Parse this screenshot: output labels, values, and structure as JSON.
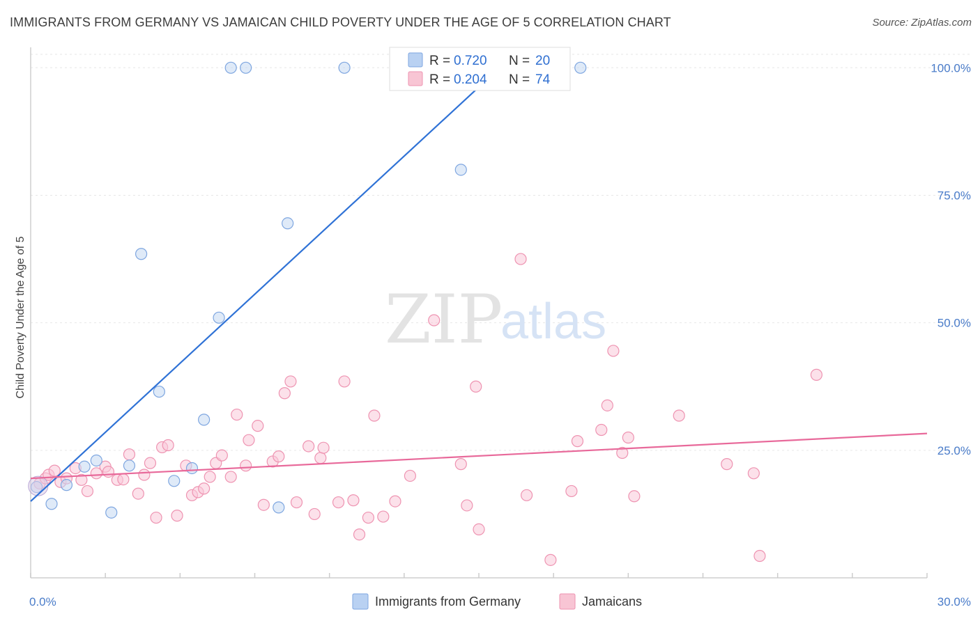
{
  "header": {
    "title": "IMMIGRANTS FROM GERMANY VS JAMAICAN CHILD POVERTY UNDER THE AGE OF 5 CORRELATION CHART",
    "source": "Source: ZipAtlas.com"
  },
  "watermark": {
    "zip": "ZIP",
    "atlas": "atlas"
  },
  "legend": {
    "rows": [
      {
        "r_label": "R =",
        "r_value": "0.720",
        "n_label": "N =",
        "n_value": "20",
        "color": "#b9d1f2",
        "stroke": "#7ea6e0"
      },
      {
        "r_label": "R =",
        "r_value": "0.204",
        "n_label": "N =",
        "n_value": "74",
        "color": "#f8c5d4",
        "stroke": "#ee93b1"
      }
    ]
  },
  "bottom_legend": {
    "items": [
      {
        "label": "Immigrants from Germany",
        "color": "#b9d1f2",
        "stroke": "#7ea6e0"
      },
      {
        "label": "Jamaicans",
        "color": "#f8c5d4",
        "stroke": "#ee93b1"
      }
    ]
  },
  "chart_data": {
    "type": "scatter",
    "title": "IMMIGRANTS FROM GERMANY VS JAMAICAN CHILD POVERTY UNDER THE AGE OF 5 CORRELATION CHART",
    "xlabel": "",
    "ylabel": "Child Poverty Under the Age of 5",
    "xlim": [
      0,
      30
    ],
    "ylim": [
      0,
      104
    ],
    "x_tick_labels": [
      "0.0%",
      "30.0%"
    ],
    "y_ticks": [
      25,
      50,
      75,
      100
    ],
    "y_tick_labels": [
      "25.0%",
      "50.0%",
      "75.0%",
      "100.0%"
    ],
    "grid": true,
    "legend_position": "top-center",
    "series": [
      {
        "name": "Immigrants from Germany",
        "color": "#7ea6e0",
        "fill": "#c5d9f3",
        "line_color": "#2f72d6",
        "trend": {
          "x": [
            0.0,
            15.7
          ],
          "y": [
            15.0,
            100.0
          ]
        },
        "points": [
          [
            0.2,
            17.8
          ],
          [
            0.7,
            14.5
          ],
          [
            1.2,
            18.2
          ],
          [
            1.8,
            21.8
          ],
          [
            2.2,
            23.0
          ],
          [
            2.7,
            12.8
          ],
          [
            3.3,
            22.0
          ],
          [
            3.7,
            63.5
          ],
          [
            4.3,
            36.5
          ],
          [
            4.8,
            19.0
          ],
          [
            5.4,
            21.5
          ],
          [
            5.8,
            31.0
          ],
          [
            6.3,
            51.0
          ],
          [
            6.7,
            100.0
          ],
          [
            7.2,
            100.0
          ],
          [
            8.3,
            13.8
          ],
          [
            8.6,
            69.5
          ],
          [
            10.5,
            100.0
          ],
          [
            14.4,
            80.0
          ],
          [
            18.4,
            100.0
          ]
        ]
      },
      {
        "name": "Jamaicans",
        "color": "#ee93b1",
        "fill": "#f9c9d8",
        "line_color": "#e8699a",
        "trend": {
          "x": [
            0.0,
            30.0
          ],
          "y": [
            19.5,
            28.3
          ]
        },
        "points": [
          [
            0.3,
            18.5
          ],
          [
            0.5,
            19.5
          ],
          [
            0.6,
            20.2
          ],
          [
            0.8,
            21.0
          ],
          [
            1.0,
            18.8
          ],
          [
            1.2,
            19.5
          ],
          [
            1.5,
            21.5
          ],
          [
            1.7,
            19.2
          ],
          [
            1.9,
            17.0
          ],
          [
            2.2,
            20.5
          ],
          [
            2.5,
            21.8
          ],
          [
            2.6,
            20.8
          ],
          [
            2.9,
            19.2
          ],
          [
            3.1,
            19.3
          ],
          [
            3.3,
            24.2
          ],
          [
            3.6,
            16.5
          ],
          [
            3.8,
            20.2
          ],
          [
            4.0,
            22.5
          ],
          [
            4.2,
            11.8
          ],
          [
            4.4,
            25.6
          ],
          [
            4.6,
            26.0
          ],
          [
            4.9,
            12.2
          ],
          [
            5.2,
            22.0
          ],
          [
            5.4,
            16.2
          ],
          [
            5.6,
            16.8
          ],
          [
            5.8,
            17.5
          ],
          [
            6.0,
            19.8
          ],
          [
            6.2,
            22.5
          ],
          [
            6.4,
            24.0
          ],
          [
            6.7,
            19.8
          ],
          [
            6.9,
            32.0
          ],
          [
            7.2,
            22.0
          ],
          [
            7.3,
            27.0
          ],
          [
            7.6,
            29.8
          ],
          [
            7.8,
            14.3
          ],
          [
            8.1,
            22.8
          ],
          [
            8.3,
            23.8
          ],
          [
            8.5,
            36.2
          ],
          [
            8.7,
            38.5
          ],
          [
            8.9,
            14.8
          ],
          [
            9.3,
            25.8
          ],
          [
            9.5,
            12.5
          ],
          [
            9.7,
            23.5
          ],
          [
            9.8,
            25.5
          ],
          [
            10.3,
            14.8
          ],
          [
            10.5,
            38.5
          ],
          [
            10.8,
            15.2
          ],
          [
            11.0,
            8.5
          ],
          [
            11.3,
            11.8
          ],
          [
            11.5,
            31.8
          ],
          [
            11.8,
            12.0
          ],
          [
            12.2,
            15.0
          ],
          [
            12.7,
            20.0
          ],
          [
            13.5,
            50.5
          ],
          [
            14.4,
            22.3
          ],
          [
            14.6,
            14.2
          ],
          [
            14.9,
            37.5
          ],
          [
            15.0,
            9.5
          ],
          [
            16.4,
            62.5
          ],
          [
            16.6,
            16.2
          ],
          [
            17.4,
            3.5
          ],
          [
            18.1,
            17.0
          ],
          [
            18.3,
            26.8
          ],
          [
            19.1,
            29.0
          ],
          [
            19.3,
            33.8
          ],
          [
            19.5,
            44.5
          ],
          [
            19.8,
            24.5
          ],
          [
            20.0,
            27.5
          ],
          [
            20.2,
            16.0
          ],
          [
            21.7,
            31.8
          ],
          [
            23.3,
            22.3
          ],
          [
            24.2,
            20.5
          ],
          [
            24.4,
            4.3
          ],
          [
            26.3,
            39.8
          ]
        ]
      }
    ]
  }
}
